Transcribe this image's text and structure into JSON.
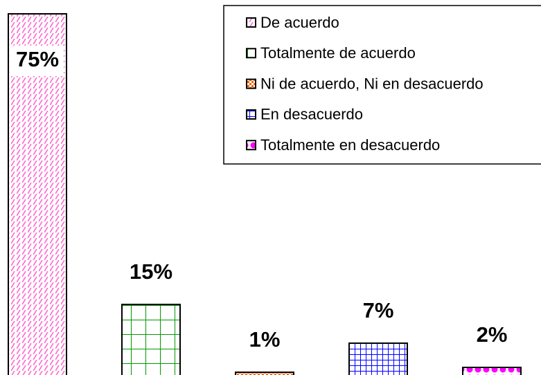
{
  "chart_data": {
    "type": "bar",
    "categories": [
      "De acuerdo",
      "Totalmente de acuerdo",
      "Ni de acuerdo, Ni en desacuerdo",
      "En desacuerdo",
      "Totalmente en desacuerdo"
    ],
    "values": [
      75,
      15,
      1,
      7,
      2
    ],
    "value_labels": [
      "75%",
      "15%",
      "1%",
      "7%",
      "2%"
    ],
    "colors": [
      "#ff66cc",
      "#009900",
      "#ff6600",
      "#0000ff",
      "#ff00ff"
    ],
    "legend": "top-right"
  }
}
